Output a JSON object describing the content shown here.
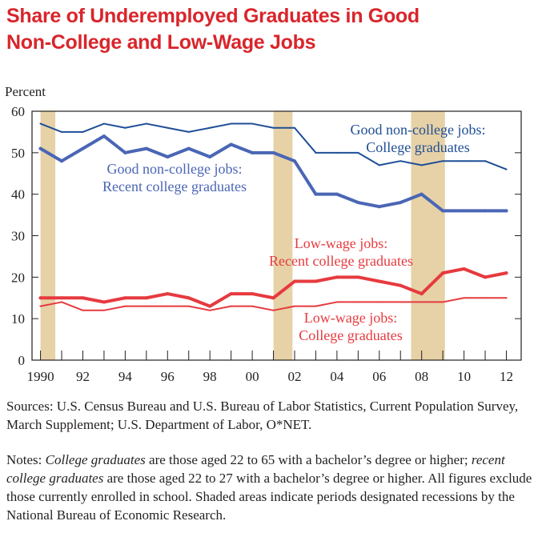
{
  "title": {
    "line1": "Share of Underemployed Graduates in Good",
    "line2": "Non-College and Low-Wage Jobs"
  },
  "colors": {
    "title": "#d9252b",
    "blue": "#4a66b5",
    "navy": "#1f4e97",
    "red": "#e63a3f",
    "recession": "#e6d2a6",
    "text": "#231f20"
  },
  "chart_data": {
    "type": "line",
    "ylabel": "Percent",
    "ylim": [
      0,
      60
    ],
    "yticks": [
      0,
      10,
      20,
      30,
      40,
      50,
      60
    ],
    "xlim": [
      1989.6,
      2012.7
    ],
    "xtick_labels": [
      "1990",
      "92",
      "94",
      "96",
      "98",
      "00",
      "02",
      "04",
      "06",
      "08",
      "10",
      "12"
    ],
    "xtick_values": [
      1990,
      1992,
      1994,
      1996,
      1998,
      2000,
      2002,
      2004,
      2006,
      2008,
      2010,
      2012
    ],
    "recessions": [
      [
        1990,
        1990.7
      ],
      [
        2001,
        2001.9
      ],
      [
        2007.5,
        2009.1
      ]
    ],
    "x": [
      1990,
      1991,
      1992,
      1993,
      1994,
      1995,
      1996,
      1997,
      1998,
      1999,
      2000,
      2001,
      2002,
      2003,
      2004,
      2005,
      2006,
      2007,
      2008,
      2009,
      2010,
      2011,
      2012
    ],
    "series": [
      {
        "name": "Good non-college jobs: College graduates",
        "label_line1": "Good non-college jobs:",
        "label_line2": "College graduates",
        "color": "#1f4e97",
        "width": 2,
        "values": [
          57,
          55,
          55,
          57,
          56,
          57,
          56,
          55,
          56,
          57,
          57,
          56,
          56,
          50,
          50,
          50,
          47,
          48,
          47,
          48,
          48,
          48,
          46
        ]
      },
      {
        "name": "Good non-college jobs: Recent college graduates",
        "label_line1": "Good non-college jobs:",
        "label_line2": "Recent college graduates",
        "color": "#4a66b5",
        "width": 4,
        "values": [
          51,
          48,
          51,
          54,
          50,
          51,
          49,
          51,
          49,
          52,
          50,
          50,
          48,
          40,
          40,
          38,
          37,
          38,
          40,
          36,
          36,
          36,
          36
        ]
      },
      {
        "name": "Low-wage jobs: Recent college graduates",
        "label_line1": "Low-wage jobs:",
        "label_line2": "Recent college graduates",
        "color": "#e63a3f",
        "width": 4,
        "values": [
          15,
          15,
          15,
          14,
          15,
          15,
          16,
          15,
          13,
          16,
          16,
          15,
          19,
          19,
          20,
          20,
          19,
          18,
          16,
          21,
          22,
          20,
          21
        ]
      },
      {
        "name": "Low-wage jobs: College graduates",
        "label_line1": "Low-wage jobs:",
        "label_line2": "College graduates",
        "color": "#e63a3f",
        "width": 2,
        "values": [
          13,
          14,
          12,
          12,
          13,
          13,
          13,
          13,
          12,
          13,
          13,
          12,
          13,
          13,
          14,
          14,
          14,
          14,
          14,
          14,
          15,
          15,
          15
        ]
      }
    ]
  },
  "sources": {
    "text": "Sources: U.S. Census Bureau and U.S. Bureau of Labor Statistics, Current Population Survey, March Supplement; U.S. Department of Labor, O*NET."
  },
  "notes": {
    "prefix": "Notes: ",
    "term1": "College graduates",
    "mid1": " are those aged 22 to 65 with a bachelor’s degree or higher; ",
    "term2": "recent college graduates",
    "mid2": " are those aged 22 to 27 with a bachelor’s degree or higher. All figures exclude those currently enrolled in school. Shaded areas indicate periods designated recessions by the National Bureau of Economic Research."
  }
}
